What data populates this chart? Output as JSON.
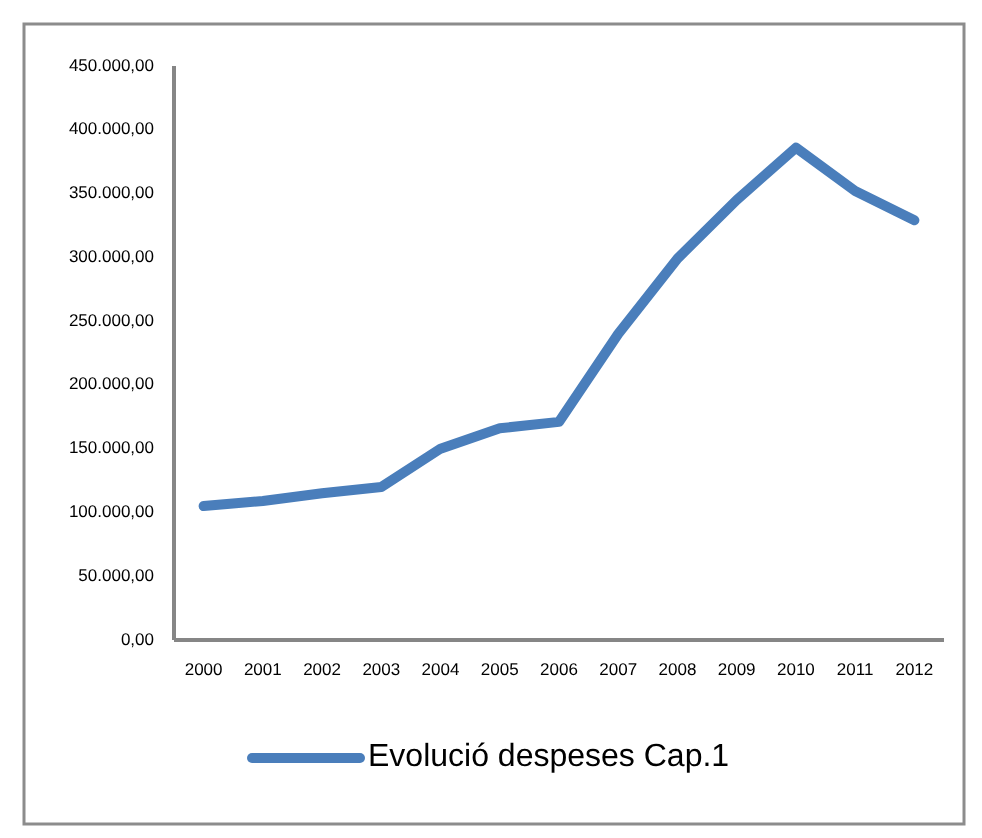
{
  "chart_data": {
    "type": "line",
    "categories": [
      "2000",
      "2001",
      "2002",
      "2003",
      "2004",
      "2005",
      "2006",
      "2007",
      "2008",
      "2009",
      "2010",
      "2011",
      "2012"
    ],
    "series": [
      {
        "name": "Evolució despeses Cap.1",
        "color": "#4a7ebb",
        "values": [
          105000,
          109000,
          115000,
          120000,
          150000,
          166000,
          171000,
          240000,
          299000,
          345000,
          386000,
          352000,
          329000
        ]
      }
    ],
    "ylim": [
      0,
      450000
    ],
    "yticks": [
      {
        "value": 0,
        "label": "0,00"
      },
      {
        "value": 50000,
        "label": "50.000,00"
      },
      {
        "value": 100000,
        "label": "100.000,00"
      },
      {
        "value": 150000,
        "label": "150.000,00"
      },
      {
        "value": 200000,
        "label": "200.000,00"
      },
      {
        "value": 250000,
        "label": "250.000,00"
      },
      {
        "value": 300000,
        "label": "300.000,00"
      },
      {
        "value": 350000,
        "label": "350.000,00"
      },
      {
        "value": 400000,
        "label": "400.000,00"
      },
      {
        "value": 450000,
        "label": "450.000,00"
      }
    ],
    "legend": "bottom"
  }
}
